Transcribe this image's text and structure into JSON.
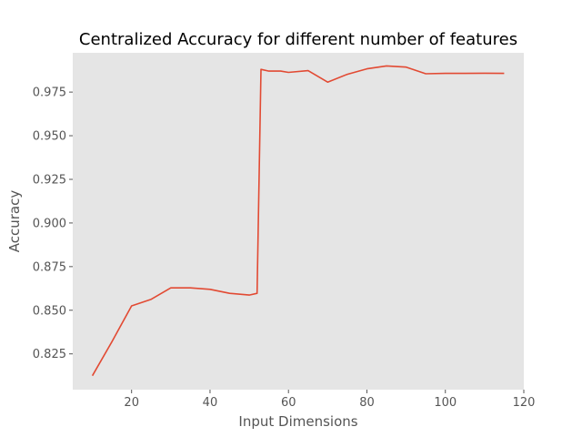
{
  "chart_data": {
    "type": "line",
    "title": "Centralized Accuracy for different number of features",
    "xlabel": "Input Dimensions",
    "ylabel": "Accuracy",
    "xlim": [
      5,
      120
    ],
    "ylim": [
      0.8045,
      0.9975
    ],
    "x_ticks": [
      20,
      40,
      60,
      80,
      100,
      120
    ],
    "x_tick_labels": [
      "20",
      "40",
      "60",
      "80",
      "100",
      "120"
    ],
    "y_ticks": [
      0.825,
      0.85,
      0.875,
      0.9,
      0.925,
      0.95,
      0.975
    ],
    "y_tick_labels": [
      "0.825",
      "0.850",
      "0.875",
      "0.900",
      "0.925",
      "0.950",
      "0.975"
    ],
    "grid": false,
    "background_color": "#e5e5e5",
    "series": [
      {
        "color": "#e24a33",
        "x": [
          10,
          15,
          20,
          25,
          30,
          35,
          40,
          45,
          50,
          52,
          53,
          55,
          58,
          60,
          65,
          70,
          75,
          80,
          85,
          90,
          95,
          100,
          105,
          110,
          115
        ],
        "y": [
          0.8125,
          0.832,
          0.8525,
          0.8563,
          0.8628,
          0.8628,
          0.862,
          0.8597,
          0.8587,
          0.8597,
          0.988,
          0.987,
          0.987,
          0.9863,
          0.9873,
          0.9807,
          0.9852,
          0.9883,
          0.99,
          0.9893,
          0.9855,
          0.9857,
          0.9857,
          0.9858,
          0.9857
        ]
      }
    ]
  }
}
